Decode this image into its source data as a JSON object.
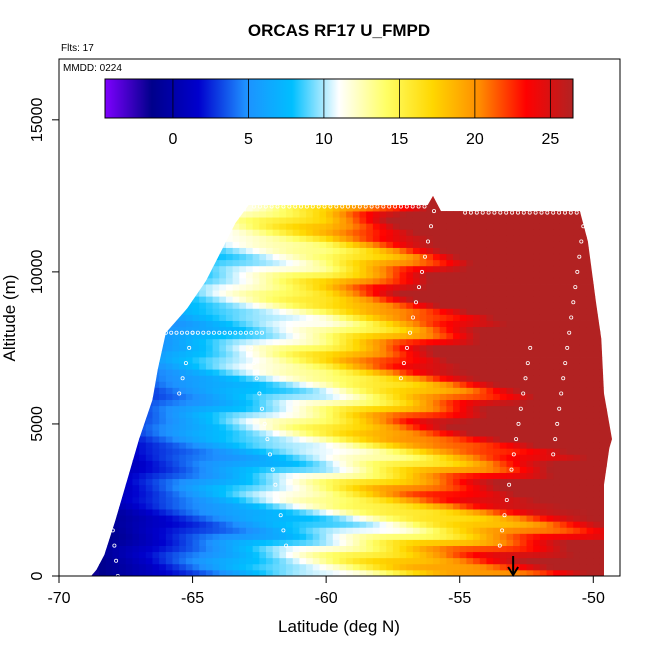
{
  "chart_data": {
    "type": "heatmap",
    "title": "ORCAS RF17 U_FMPD",
    "annotations": {
      "flights": "Flts: 17",
      "date": "MMDD: 0224"
    },
    "xlabel": "Latitude (deg N)",
    "ylabel": "Altitude (m)",
    "xlim": [
      -70,
      -49
    ],
    "ylim": [
      0,
      17000
    ],
    "x_ticks": [
      -70,
      -65,
      -60,
      -55,
      -50
    ],
    "x_tick_labels": [
      "-70",
      "-65",
      "-60",
      "-55",
      "-50"
    ],
    "y_ticks": [
      0,
      5000,
      10000,
      15000
    ],
    "y_tick_labels": [
      "0",
      "5000",
      "10000",
      "15000"
    ],
    "colorbar": {
      "min": -4.5,
      "max": 26.5,
      "ticks": [
        0,
        5,
        10,
        15,
        20,
        25
      ],
      "tick_labels": [
        "0",
        "5",
        "10",
        "15",
        "20",
        "25"
      ],
      "colors": [
        "#7f00ff",
        "#00008b",
        "#0000cd",
        "#1e90ff",
        "#00bfff",
        "#ffffff",
        "#ffff66",
        "#ffd700",
        "#ff8c00",
        "#ff0000",
        "#b22222"
      ]
    },
    "envelope": [
      [
        -68.8,
        0
      ],
      [
        -68.6,
        200
      ],
      [
        -68.3,
        700
      ],
      [
        -67.9,
        1800
      ],
      [
        -67.5,
        3000
      ],
      [
        -67.0,
        4500
      ],
      [
        -66.5,
        5800
      ],
      [
        -66.3,
        6800
      ],
      [
        -66.0,
        8000
      ],
      [
        -65.2,
        8800
      ],
      [
        -64.5,
        9700
      ],
      [
        -63.8,
        10900
      ],
      [
        -63.4,
        11600
      ],
      [
        -62.9,
        12200
      ],
      [
        -56.2,
        12200
      ],
      [
        -56.0,
        12500
      ],
      [
        -55.7,
        12000
      ],
      [
        -50.5,
        12000
      ],
      [
        -50.2,
        11000
      ],
      [
        -49.9,
        9000
      ],
      [
        -49.7,
        7800
      ],
      [
        -49.6,
        6000
      ],
      [
        -49.3,
        4500
      ],
      [
        -49.4,
        4200
      ],
      [
        -49.6,
        3000
      ],
      [
        -49.6,
        0
      ]
    ],
    "marker": {
      "lat": -53.0,
      "alt": 600
    }
  }
}
